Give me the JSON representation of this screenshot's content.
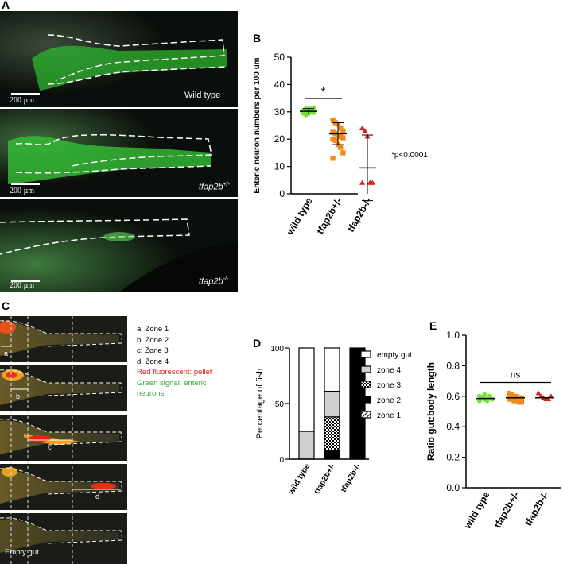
{
  "panels": {
    "A": "A",
    "B": "B",
    "C": "C",
    "D": "D",
    "E": "E"
  },
  "panelA": {
    "images": [
      {
        "genotype": "Wild type",
        "scale": "200 µm"
      },
      {
        "genotype_base": "tfap2b",
        "genotype_sup": "+/-",
        "scale": "200 µm"
      },
      {
        "genotype_base": "tfap2b",
        "genotype_sup": "-/-",
        "scale": "200 µm"
      }
    ]
  },
  "panelC": {
    "legend": [
      {
        "text": "a: Zone 1",
        "color": "#000000"
      },
      {
        "text": "b: Zone 2",
        "color": "#000000"
      },
      {
        "text": "c: Zone 3",
        "color": "#000000"
      },
      {
        "text": "d: Zone 4",
        "color": "#000000"
      },
      {
        "text": "Red fluorescent: pellet",
        "color": "#e0201a"
      },
      {
        "text": "Green signal: enteric",
        "color": "#3aa53a"
      },
      {
        "text": "neurons",
        "color": "#3aa53a"
      }
    ],
    "labels": [
      "a",
      "b",
      "c",
      "d"
    ],
    "empty_label": "Empty gut"
  },
  "chart_data": [
    {
      "panel": "B",
      "type": "scatter",
      "ylabel": "Enteric neuron numbers per 100 um",
      "ylim": [
        0,
        50
      ],
      "yticks": [
        0,
        10,
        20,
        30,
        40,
        50
      ],
      "categories": [
        "wild type",
        "tfap2b+/-",
        "tfap2b-/-"
      ],
      "colors": [
        "#77e03a",
        "#f0891e",
        "#d81e1e"
      ],
      "markers": [
        "circle",
        "square",
        "triangle"
      ],
      "points": [
        [
          30.5,
          31,
          29.5,
          30,
          31.5,
          30,
          29,
          30.5,
          31,
          30,
          29.5,
          30.5,
          31,
          30,
          29.8
        ],
        [
          27,
          26,
          25.5,
          24,
          23,
          22.5,
          22,
          21.5,
          21,
          20.5,
          20,
          19.5,
          18,
          17,
          15,
          13
        ],
        [
          24,
          23,
          21,
          4,
          4,
          4
        ]
      ],
      "mean": [
        30.2,
        22,
        9.5
      ],
      "sd": [
        1,
        4,
        12
      ],
      "significance": "*",
      "note": "*p<0.0001"
    },
    {
      "panel": "D",
      "type": "bar",
      "stacked": true,
      "ylabel": "Percentage of fish",
      "ylim": [
        0,
        100
      ],
      "yticks": [
        0,
        50,
        100
      ],
      "categories": [
        "wild type",
        "tfap2b+/-",
        "tfap2b-/-"
      ],
      "series": [
        {
          "name": "zone 1",
          "values": [
            0,
            0,
            0
          ],
          "pattern": "hatch"
        },
        {
          "name": "zone 2",
          "values": [
            0,
            8,
            100
          ],
          "pattern": "black"
        },
        {
          "name": "zone 3",
          "values": [
            0,
            30,
            0
          ],
          "pattern": "checker"
        },
        {
          "name": "zone 4",
          "values": [
            25,
            23,
            0
          ],
          "pattern": "gray"
        },
        {
          "name": "empty gut",
          "values": [
            75,
            39,
            0
          ],
          "pattern": "white"
        }
      ],
      "legend_order": [
        "empty gut",
        "zone 4",
        "zone 3",
        "zone 2",
        "zone 1"
      ]
    },
    {
      "panel": "E",
      "type": "scatter",
      "ylabel": "Ratio gut:body length",
      "ylim": [
        0,
        1
      ],
      "yticks": [
        "0.0",
        "0.2",
        "0.4",
        "0.6",
        "0.8",
        "1.0"
      ],
      "categories": [
        "wild type",
        "tfap2b+/-",
        "tfap2b-/-"
      ],
      "colors": [
        "#77e03a",
        "#f0891e",
        "#d81e1e"
      ],
      "markers": [
        "circle",
        "square",
        "triangle"
      ],
      "points": [
        [
          0.6,
          0.59,
          0.58,
          0.57,
          0.6,
          0.58,
          0.57,
          0.59,
          0.61,
          0.58
        ],
        [
          0.62,
          0.61,
          0.6,
          0.6,
          0.59,
          0.59,
          0.58,
          0.58,
          0.57,
          0.57,
          0.56,
          0.56,
          0.6,
          0.61,
          0.58,
          0.59
        ],
        [
          0.62,
          0.6,
          0.59,
          0.58,
          0.58,
          0.6
        ]
      ],
      "mean": [
        0.585,
        0.59,
        0.59
      ],
      "significance": "ns"
    }
  ]
}
